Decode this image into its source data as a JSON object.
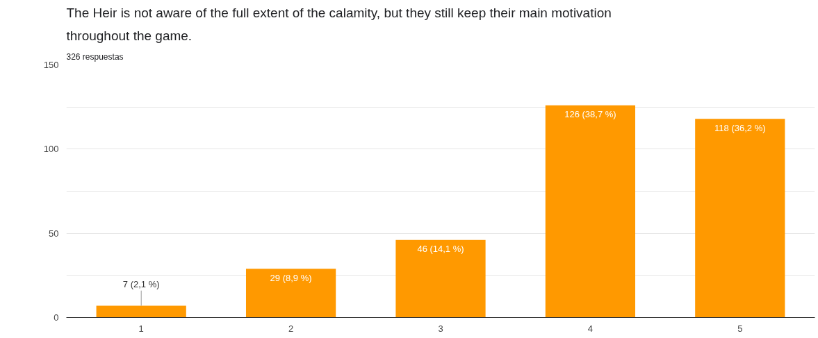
{
  "chart_data": {
    "type": "bar",
    "title": "The Heir is not aware of the full extent of the calamity, but they still keep their main motivation\nthroughout the game.",
    "subtitle": "326 respuestas",
    "categories": [
      "1",
      "2",
      "3",
      "4",
      "5"
    ],
    "values": [
      7,
      29,
      46,
      126,
      118
    ],
    "value_labels": [
      "7 (2,1 %)",
      "29 (8,9 %)",
      "46 (14,1 %)",
      "126 (38,7 %)",
      "118 (36,2 %)"
    ],
    "color": "#ff9900",
    "ylim": [
      0,
      150
    ],
    "yticks": [
      0,
      {
        "value": 25,
        "label": null
      },
      50,
      {
        "value": 75,
        "label": null
      },
      100,
      {
        "value": 125,
        "label": null
      },
      150
    ],
    "grid": "y"
  }
}
